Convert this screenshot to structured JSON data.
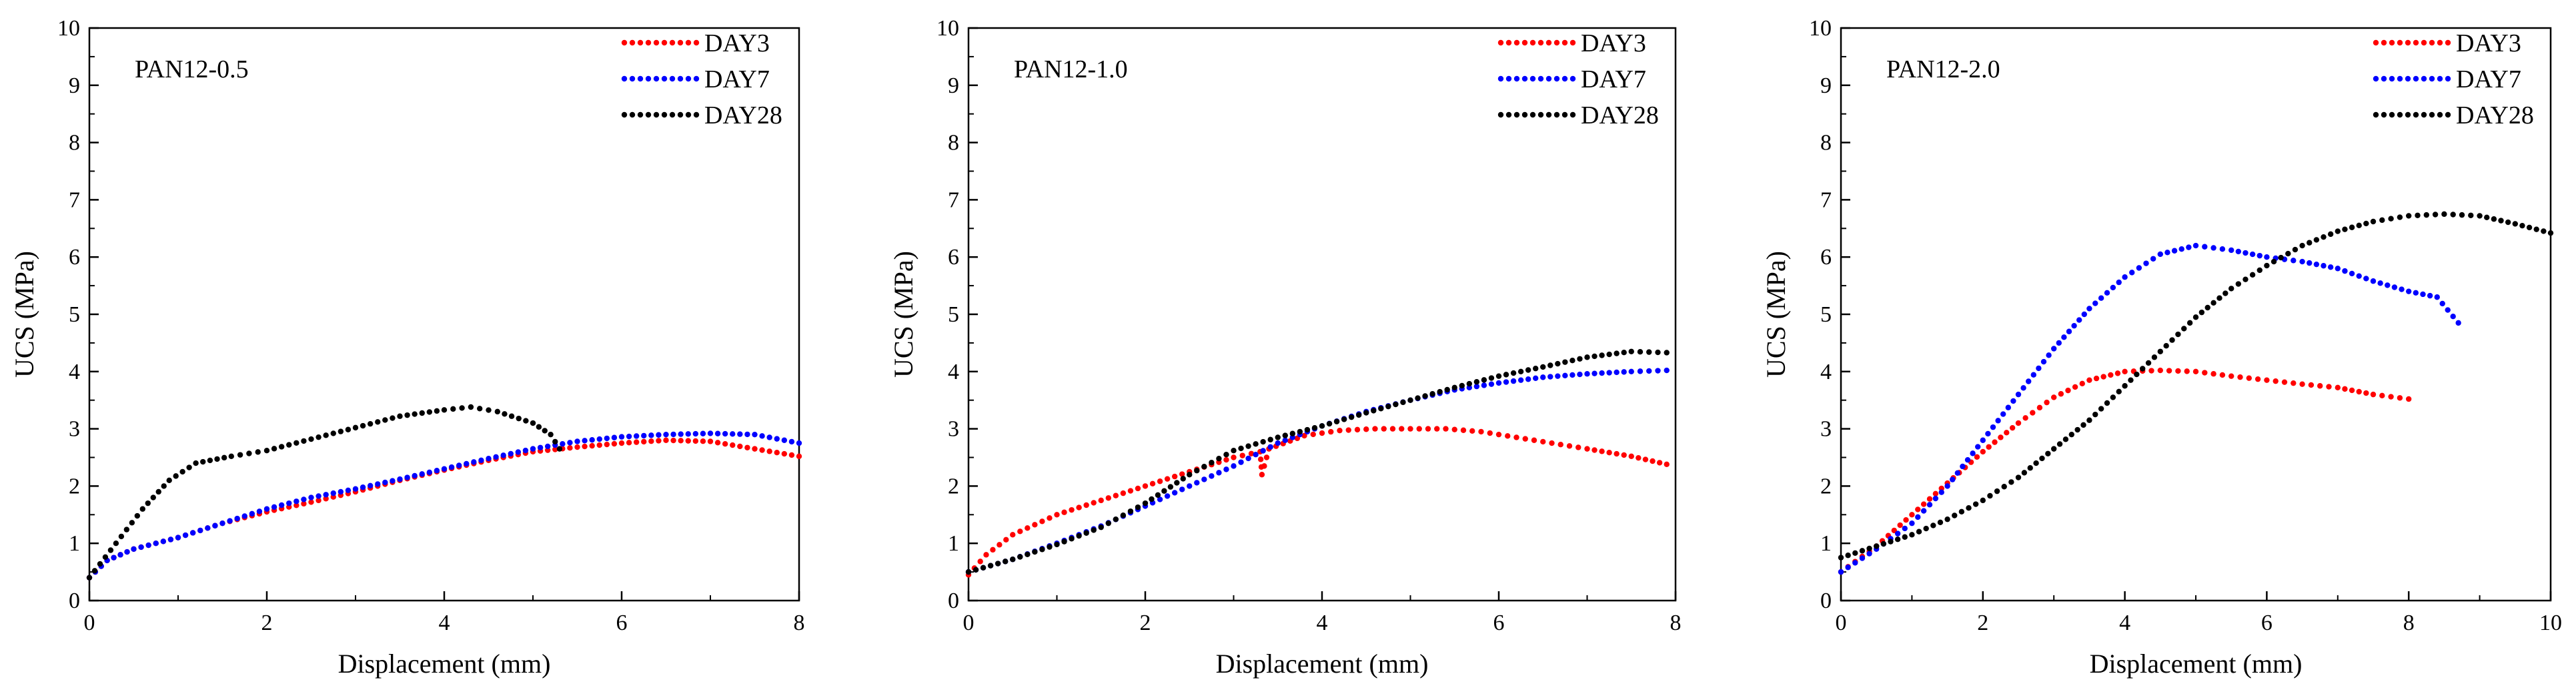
{
  "chart_data": [
    {
      "type": "scatter",
      "title": "PAN12-0.5",
      "xlabel": "Displacement (mm)",
      "ylabel": "UCS (MPa)",
      "xlim": [
        0,
        8
      ],
      "ylim": [
        0,
        10
      ],
      "xticks": [
        "0",
        "2",
        "4",
        "6",
        "8"
      ],
      "yticks": [
        "0",
        "1",
        "2",
        "3",
        "4",
        "5",
        "6",
        "7",
        "8",
        "9",
        "10"
      ],
      "legend_position": "top-right",
      "series": [
        {
          "name": "DAY3",
          "color": "#ff0000",
          "points": [
            [
              0,
              0.4
            ],
            [
              0.2,
              0.7
            ],
            [
              0.5,
              0.9
            ],
            [
              1.0,
              1.1
            ],
            [
              1.5,
              1.35
            ],
            [
              2.0,
              1.55
            ],
            [
              2.5,
              1.72
            ],
            [
              3.0,
              1.9
            ],
            [
              3.5,
              2.1
            ],
            [
              4.0,
              2.28
            ],
            [
              4.5,
              2.45
            ],
            [
              5.0,
              2.6
            ],
            [
              5.5,
              2.68
            ],
            [
              6.0,
              2.75
            ],
            [
              6.5,
              2.8
            ],
            [
              7.0,
              2.78
            ],
            [
              7.5,
              2.65
            ],
            [
              8.0,
              2.52
            ]
          ]
        },
        {
          "name": "DAY7",
          "color": "#0000ff",
          "points": [
            [
              0,
              0.4
            ],
            [
              0.2,
              0.7
            ],
            [
              0.5,
              0.9
            ],
            [
              1.0,
              1.1
            ],
            [
              1.5,
              1.35
            ],
            [
              2.0,
              1.6
            ],
            [
              2.5,
              1.8
            ],
            [
              3.0,
              1.95
            ],
            [
              3.5,
              2.12
            ],
            [
              4.0,
              2.3
            ],
            [
              4.5,
              2.48
            ],
            [
              5.0,
              2.65
            ],
            [
              5.5,
              2.78
            ],
            [
              6.0,
              2.86
            ],
            [
              6.5,
              2.9
            ],
            [
              7.0,
              2.92
            ],
            [
              7.5,
              2.9
            ],
            [
              8.0,
              2.75
            ]
          ]
        },
        {
          "name": "DAY28",
          "color": "#000000",
          "points": [
            [
              0,
              0.4
            ],
            [
              0.3,
              1.0
            ],
            [
              0.6,
              1.6
            ],
            [
              0.9,
              2.1
            ],
            [
              1.2,
              2.4
            ],
            [
              1.6,
              2.52
            ],
            [
              2.0,
              2.62
            ],
            [
              2.5,
              2.82
            ],
            [
              3.0,
              3.02
            ],
            [
              3.5,
              3.22
            ],
            [
              4.0,
              3.33
            ],
            [
              4.3,
              3.38
            ],
            [
              4.6,
              3.3
            ],
            [
              5.0,
              3.1
            ],
            [
              5.2,
              2.9
            ],
            [
              5.3,
              2.65
            ]
          ]
        }
      ]
    },
    {
      "type": "scatter",
      "title": "PAN12-1.0",
      "xlabel": "Displacement (mm)",
      "ylabel": "UCS (MPa)",
      "xlim": [
        0,
        8
      ],
      "ylim": [
        0,
        10
      ],
      "xticks": [
        "0",
        "2",
        "4",
        "6",
        "8"
      ],
      "yticks": [
        "0",
        "1",
        "2",
        "3",
        "4",
        "5",
        "6",
        "7",
        "8",
        "9",
        "10"
      ],
      "legend_position": "top-right",
      "series": [
        {
          "name": "DAY3",
          "color": "#ff0000",
          "points": [
            [
              0,
              0.45
            ],
            [
              0.2,
              0.8
            ],
            [
              0.5,
              1.15
            ],
            [
              1.0,
              1.5
            ],
            [
              1.5,
              1.75
            ],
            [
              2.0,
              2.0
            ],
            [
              2.5,
              2.25
            ],
            [
              3.0,
              2.5
            ],
            [
              3.3,
              2.6
            ],
            [
              3.32,
              2.2
            ],
            [
              3.4,
              2.65
            ],
            [
              3.8,
              2.88
            ],
            [
              4.2,
              2.97
            ],
            [
              4.6,
              3.0
            ],
            [
              5.0,
              3.0
            ],
            [
              5.4,
              3.0
            ],
            [
              5.8,
              2.95
            ],
            [
              6.2,
              2.85
            ],
            [
              6.6,
              2.75
            ],
            [
              7.0,
              2.65
            ],
            [
              7.5,
              2.52
            ],
            [
              7.9,
              2.38
            ]
          ]
        },
        {
          "name": "DAY7",
          "color": "#0000ff",
          "points": [
            [
              0,
              0.5
            ],
            [
              0.5,
              0.72
            ],
            [
              1.0,
              1.0
            ],
            [
              1.5,
              1.3
            ],
            [
              2.0,
              1.65
            ],
            [
              2.5,
              2.0
            ],
            [
              3.0,
              2.35
            ],
            [
              3.5,
              2.75
            ],
            [
              4.0,
              3.05
            ],
            [
              4.5,
              3.3
            ],
            [
              5.0,
              3.5
            ],
            [
              5.5,
              3.68
            ],
            [
              6.0,
              3.8
            ],
            [
              6.5,
              3.9
            ],
            [
              7.0,
              3.96
            ],
            [
              7.5,
              4.0
            ],
            [
              7.9,
              4.02
            ]
          ]
        },
        {
          "name": "DAY28",
          "color": "#000000",
          "points": [
            [
              0,
              0.5
            ],
            [
              0.5,
              0.72
            ],
            [
              1.0,
              0.98
            ],
            [
              1.5,
              1.28
            ],
            [
              2.0,
              1.7
            ],
            [
              2.5,
              2.2
            ],
            [
              3.0,
              2.62
            ],
            [
              3.5,
              2.85
            ],
            [
              4.0,
              3.05
            ],
            [
              4.5,
              3.28
            ],
            [
              5.0,
              3.5
            ],
            [
              5.5,
              3.72
            ],
            [
              6.0,
              3.92
            ],
            [
              6.5,
              4.08
            ],
            [
              7.0,
              4.25
            ],
            [
              7.5,
              4.35
            ],
            [
              7.9,
              4.33
            ]
          ]
        }
      ]
    },
    {
      "type": "scatter",
      "title": "PAN12-2.0",
      "xlabel": "Displacement (mm)",
      "ylabel": "UCS (MPa)",
      "xlim": [
        0,
        10
      ],
      "ylim": [
        0,
        10
      ],
      "xticks": [
        "0",
        "2",
        "4",
        "6",
        "8",
        "10"
      ],
      "yticks": [
        "0",
        "1",
        "2",
        "3",
        "4",
        "5",
        "6",
        "7",
        "8",
        "9",
        "10"
      ],
      "legend_position": "top-right",
      "series": [
        {
          "name": "DAY3",
          "color": "#ff0000",
          "points": [
            [
              0,
              0.5
            ],
            [
              0.5,
              0.95
            ],
            [
              1.0,
              1.5
            ],
            [
              1.5,
              2.05
            ],
            [
              2.0,
              2.6
            ],
            [
              2.5,
              3.1
            ],
            [
              3.0,
              3.55
            ],
            [
              3.5,
              3.85
            ],
            [
              4.0,
              4.0
            ],
            [
              4.5,
              4.02
            ],
            [
              5.0,
              4.0
            ],
            [
              5.5,
              3.92
            ],
            [
              6.0,
              3.85
            ],
            [
              6.5,
              3.78
            ],
            [
              7.0,
              3.72
            ],
            [
              7.5,
              3.6
            ],
            [
              8.0,
              3.52
            ]
          ]
        },
        {
          "name": "DAY7",
          "color": "#0000ff",
          "points": [
            [
              0,
              0.5
            ],
            [
              0.5,
              0.9
            ],
            [
              1.0,
              1.35
            ],
            [
              1.5,
              2.0
            ],
            [
              2.0,
              2.8
            ],
            [
              2.5,
              3.6
            ],
            [
              3.0,
              4.4
            ],
            [
              3.5,
              5.1
            ],
            [
              4.0,
              5.65
            ],
            [
              4.5,
              6.05
            ],
            [
              5.0,
              6.2
            ],
            [
              5.5,
              6.12
            ],
            [
              6.0,
              6.0
            ],
            [
              6.5,
              5.92
            ],
            [
              7.0,
              5.8
            ],
            [
              7.5,
              5.58
            ],
            [
              8.0,
              5.4
            ],
            [
              8.4,
              5.3
            ],
            [
              8.7,
              4.85
            ]
          ]
        },
        {
          "name": "DAY28",
          "color": "#000000",
          "points": [
            [
              0,
              0.75
            ],
            [
              0.5,
              0.95
            ],
            [
              1.0,
              1.15
            ],
            [
              1.5,
              1.42
            ],
            [
              2.0,
              1.75
            ],
            [
              2.5,
              2.15
            ],
            [
              3.0,
              2.65
            ],
            [
              3.5,
              3.15
            ],
            [
              4.0,
              3.75
            ],
            [
              4.5,
              4.35
            ],
            [
              5.0,
              4.95
            ],
            [
              5.5,
              5.45
            ],
            [
              6.0,
              5.85
            ],
            [
              6.5,
              6.2
            ],
            [
              7.0,
              6.45
            ],
            [
              7.5,
              6.62
            ],
            [
              8.0,
              6.72
            ],
            [
              8.5,
              6.75
            ],
            [
              9.0,
              6.72
            ],
            [
              9.5,
              6.58
            ],
            [
              10.0,
              6.42
            ]
          ]
        }
      ]
    }
  ]
}
